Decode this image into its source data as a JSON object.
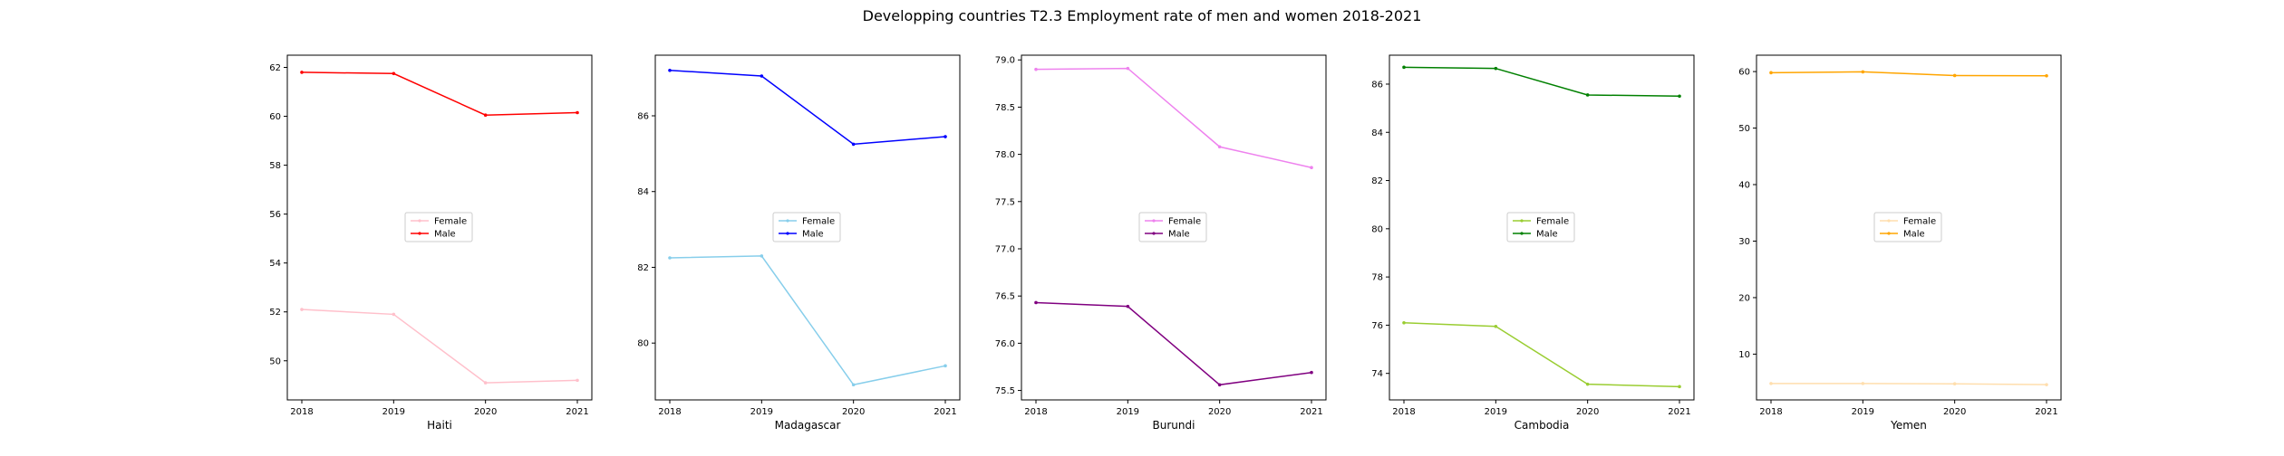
{
  "title": "Developping countries T2.3 Employment rate of men and women 2018-2021",
  "chart_data": [
    {
      "type": "line",
      "xlabel": "Haiti",
      "ylabel": "",
      "x": [
        "2018",
        "2019",
        "2020",
        "2021"
      ],
      "ylim": [
        48.4,
        62.5
      ],
      "yticks": [
        50,
        52,
        54,
        56,
        58,
        60,
        62
      ],
      "grid": false,
      "legend": "center",
      "series": [
        {
          "name": "Female",
          "color": "#ffc0cb",
          "values": [
            52.1,
            51.9,
            49.1,
            49.2
          ]
        },
        {
          "name": "Male",
          "color": "#ff0000",
          "values": [
            61.8,
            61.75,
            60.05,
            60.15
          ]
        }
      ]
    },
    {
      "type": "line",
      "xlabel": "Madagascar",
      "ylabel": "",
      "x": [
        "2018",
        "2019",
        "2020",
        "2021"
      ],
      "ylim": [
        78.5,
        87.6
      ],
      "yticks": [
        80,
        82,
        84,
        86
      ],
      "grid": false,
      "legend": "center",
      "series": [
        {
          "name": "Female",
          "color": "#87ceeb",
          "values": [
            82.25,
            82.3,
            78.9,
            79.4
          ]
        },
        {
          "name": "Male",
          "color": "#0000ff",
          "values": [
            87.2,
            87.05,
            85.25,
            85.45
          ]
        }
      ]
    },
    {
      "type": "line",
      "xlabel": "Burundi",
      "ylabel": "",
      "x": [
        "2018",
        "2019",
        "2020",
        "2021"
      ],
      "ylim": [
        75.4,
        79.05
      ],
      "yticks": [
        75.5,
        76.0,
        76.5,
        77.0,
        77.5,
        78.0,
        78.5,
        79.0
      ],
      "ytick_labels": [
        "75.5",
        "76.0",
        "76.5",
        "77.0",
        "77.5",
        "78.0",
        "78.5",
        "79.0"
      ],
      "grid": false,
      "legend": "center",
      "series": [
        {
          "name": "Female",
          "color": "#ee82ee",
          "values": [
            78.9,
            78.91,
            78.08,
            77.86
          ]
        },
        {
          "name": "Male",
          "color": "#800080",
          "values": [
            76.43,
            76.39,
            75.56,
            75.69
          ]
        }
      ]
    },
    {
      "type": "line",
      "xlabel": "Cambodia",
      "ylabel": "",
      "x": [
        "2018",
        "2019",
        "2020",
        "2021"
      ],
      "ylim": [
        72.9,
        87.2
      ],
      "yticks": [
        74,
        76,
        78,
        80,
        82,
        84,
        86
      ],
      "grid": false,
      "legend": "center",
      "series": [
        {
          "name": "Female",
          "color": "#9acd32",
          "values": [
            76.1,
            75.95,
            73.55,
            73.45
          ]
        },
        {
          "name": "Male",
          "color": "#008000",
          "values": [
            86.7,
            86.65,
            85.55,
            85.5
          ]
        }
      ]
    },
    {
      "type": "line",
      "xlabel": "Yemen",
      "ylabel": "",
      "x": [
        "2018",
        "2019",
        "2020",
        "2021"
      ],
      "ylim": [
        1.9,
        62.9
      ],
      "yticks": [
        10,
        20,
        30,
        40,
        50,
        60
      ],
      "grid": false,
      "legend": "center",
      "series": [
        {
          "name": "Female",
          "color": "#ffdead",
          "values": [
            4.8,
            4.8,
            4.75,
            4.6
          ]
        },
        {
          "name": "Male",
          "color": "#ffa500",
          "values": [
            59.8,
            59.95,
            59.3,
            59.25
          ]
        }
      ]
    }
  ]
}
